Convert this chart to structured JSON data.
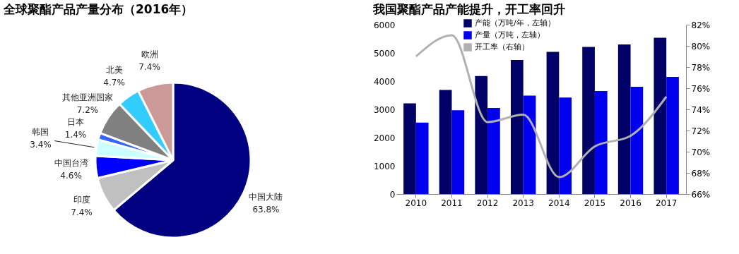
{
  "chart_data": [
    {
      "type": "pie",
      "title": "全球聚酯产品产量分布（2016年）",
      "categories": [
        "中国大陆",
        "印度",
        "中国台湾",
        "韩国",
        "日本",
        "其他亚洲国家",
        "北美",
        "欧洲"
      ],
      "values": [
        63.8,
        7.4,
        4.6,
        3.4,
        1.4,
        7.2,
        4.7,
        7.4
      ],
      "colors": [
        "#000080",
        "#c0c0c0",
        "#0000ff",
        "#ccffff",
        "#3366ff",
        "#808080",
        "#33ccff",
        "#cc9999"
      ],
      "value_labels": [
        "63.8%",
        "7.4%",
        "4.6%",
        "3.4%",
        "1.4%",
        "7.2%",
        "4.7%",
        "7.4%"
      ]
    },
    {
      "type": "bar",
      "title": "我国聚酯产品产能提升，开工率回升",
      "categories": [
        "2010",
        "2011",
        "2012",
        "2013",
        "2014",
        "2015",
        "2016",
        "2017"
      ],
      "series": [
        {
          "name": "产能（万吨/年，左轴）",
          "color": "#000066",
          "values": [
            3210,
            3690,
            4180,
            4750,
            5040,
            5210,
            5300,
            5540
          ]
        },
        {
          "name": "产量（万吨，左轴）",
          "color": "#0000ee",
          "values": [
            2530,
            2970,
            3050,
            3490,
            3420,
            3650,
            3800,
            4150
          ]
        },
        {
          "name": "开工率（右轴）",
          "type": "line",
          "axis": "y2",
          "color": "#b0b0b0",
          "values": [
            79.0,
            81.0,
            72.8,
            73.5,
            67.6,
            70.5,
            71.5,
            75.2
          ]
        }
      ],
      "ylim": [
        0,
        6000
      ],
      "yticks": [
        0,
        1000,
        2000,
        3000,
        4000,
        5000,
        6000
      ],
      "y2lim": [
        66,
        82
      ],
      "y2ticks": [
        {
          "value": 66,
          "label": "66%"
        },
        {
          "value": 68,
          "label": "68%"
        },
        {
          "value": 70,
          "label": "70%"
        },
        {
          "value": 72,
          "label": "72%"
        },
        {
          "value": 74,
          "label": "74%"
        },
        {
          "value": 76,
          "label": "76%"
        },
        {
          "value": 78,
          "label": "78%"
        },
        {
          "value": 80,
          "label": "80%"
        },
        {
          "value": 82,
          "label": "82%"
        }
      ],
      "legend": "top left",
      "grid": false,
      "line_style": "solid",
      "marker": "none"
    }
  ]
}
